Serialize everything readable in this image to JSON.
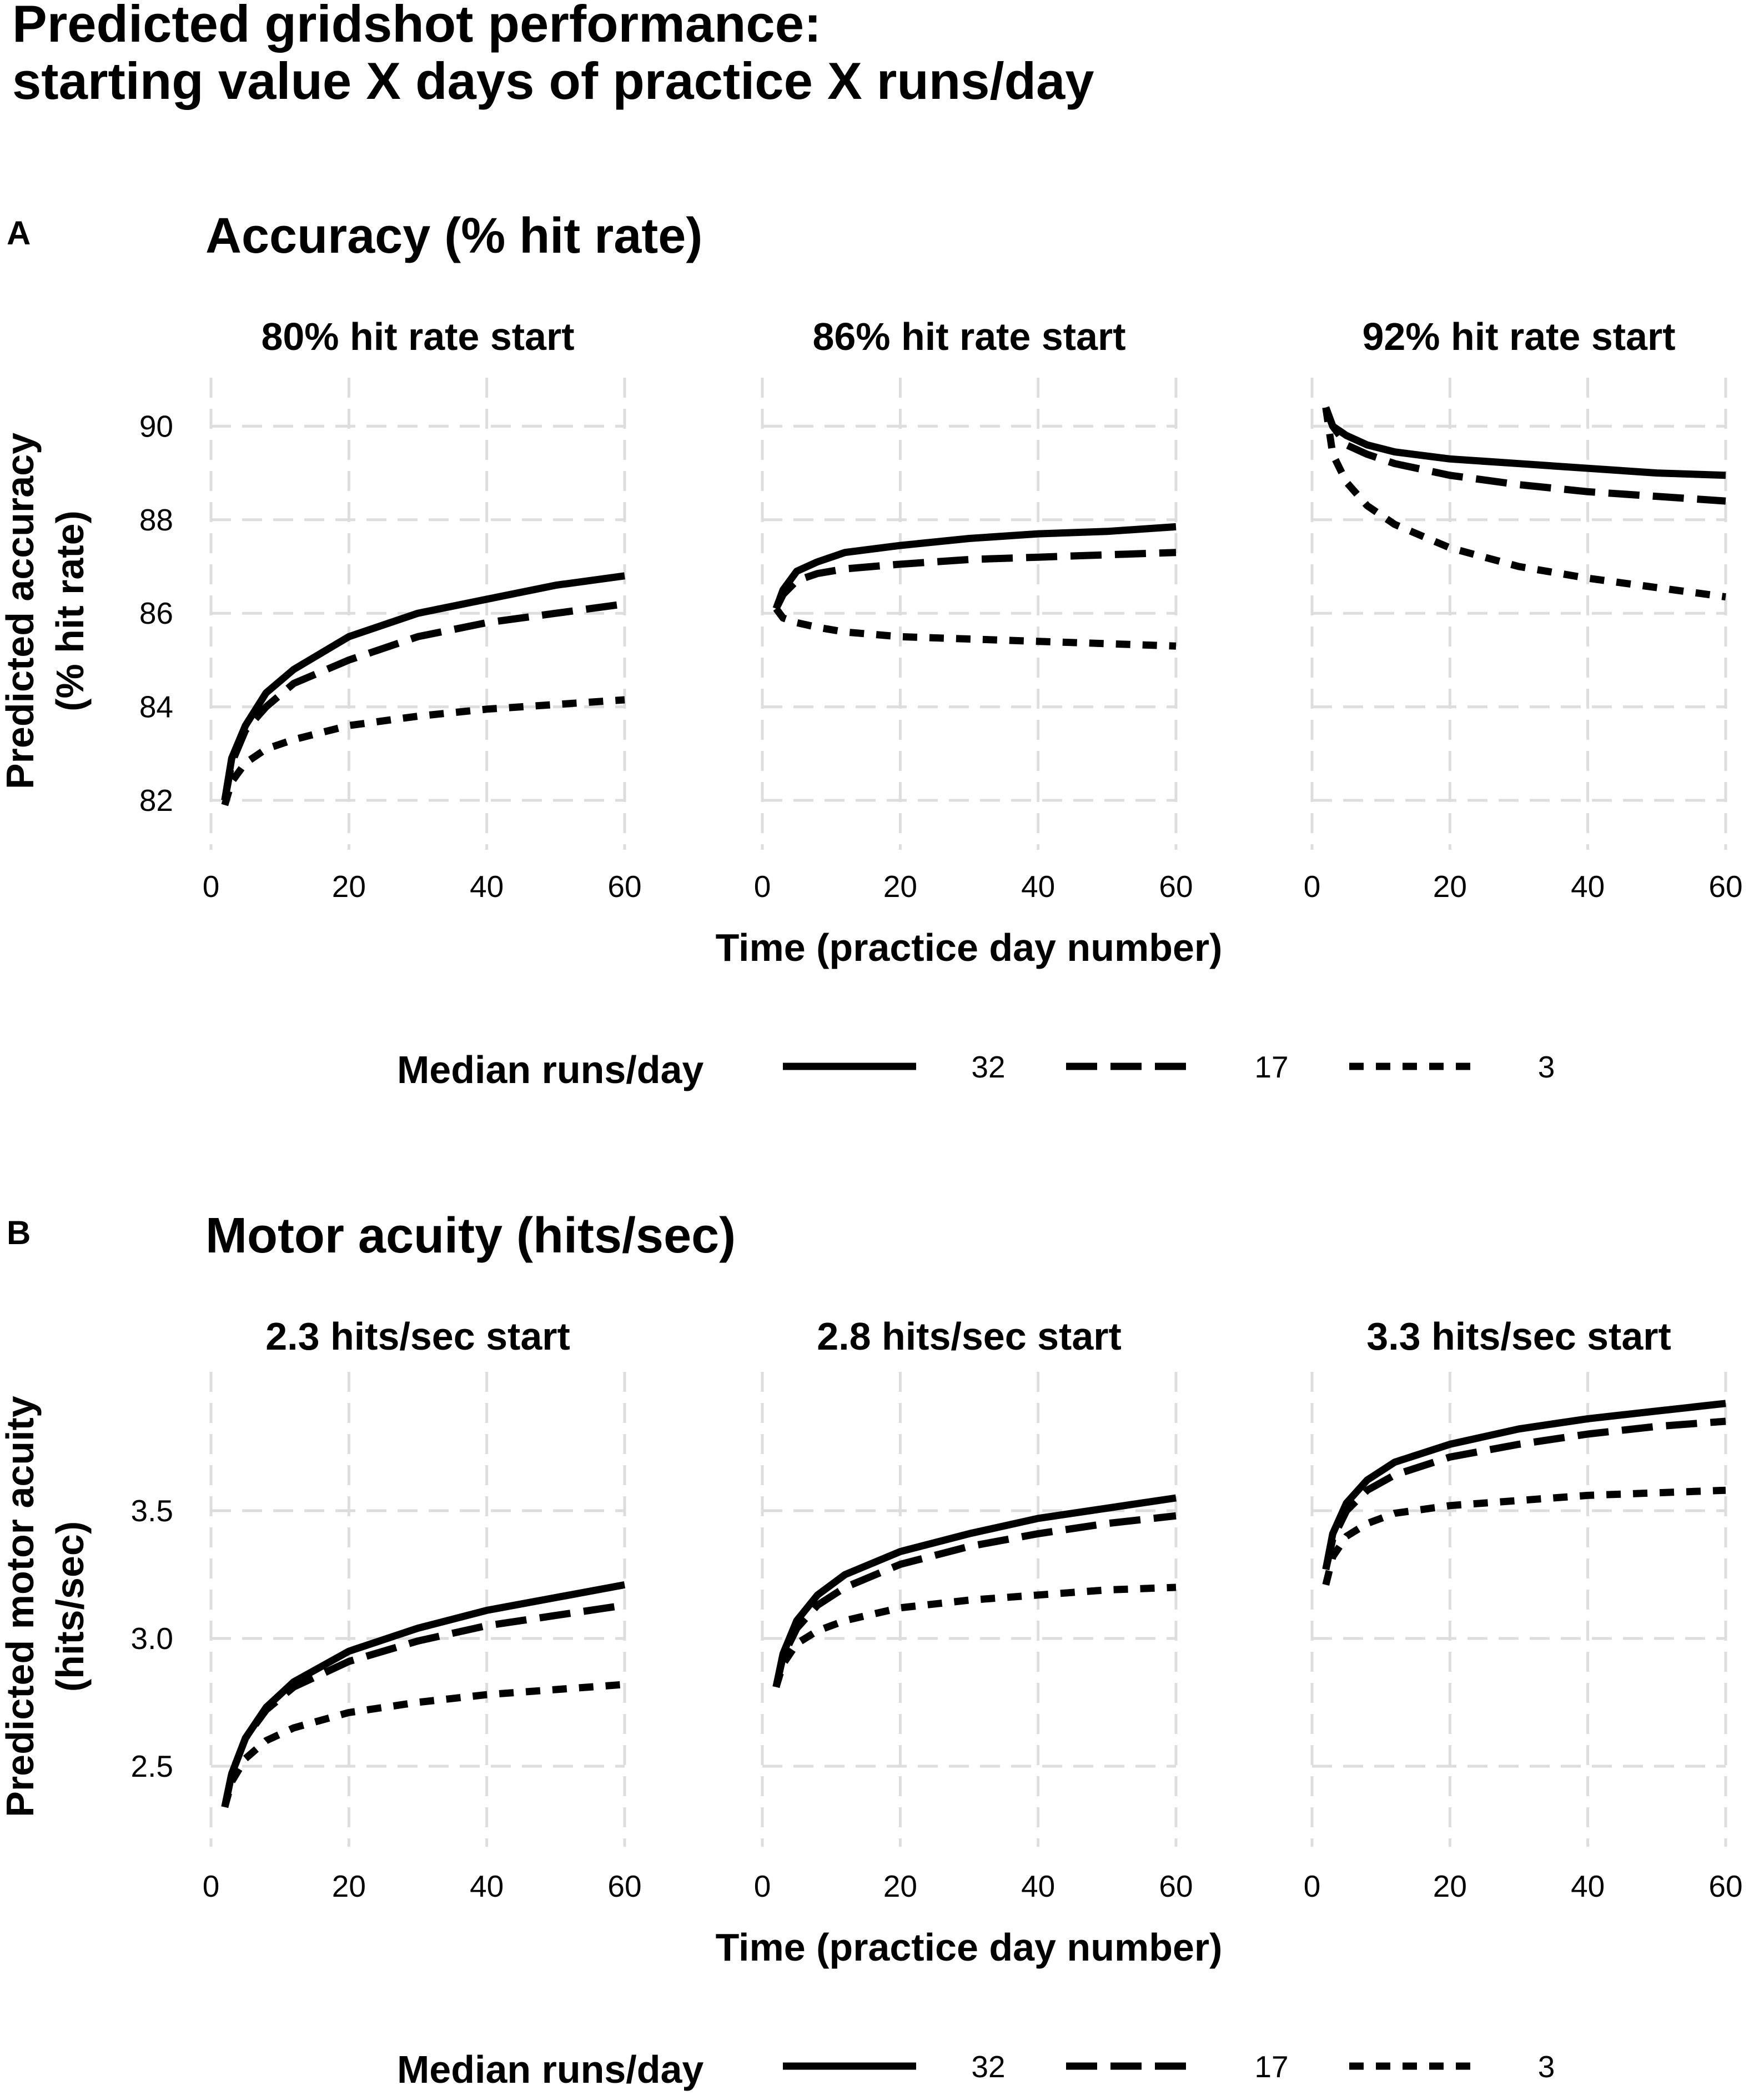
{
  "title_lines": [
    "Predicted gridshot performance:",
    "starting value X days of practice X runs/day"
  ],
  "legend": {
    "title": "Median runs/day",
    "entries": [
      {
        "label": "32",
        "style": "solid"
      },
      {
        "label": "17",
        "style": "dashed"
      },
      {
        "label": "3",
        "style": "dotted"
      }
    ]
  },
  "chart_data": [
    {
      "panel": "A",
      "type": "line",
      "title": "Accuracy (% hit rate)",
      "xlabel": "Time (practice day number)",
      "ylabel_lines": [
        "Predicted accuracy",
        "(% hit rate)"
      ],
      "xlim": [
        0,
        60
      ],
      "ylim": [
        81.3,
        90.8
      ],
      "xticks": [
        0,
        20,
        40,
        60
      ],
      "yticks": [
        82,
        84,
        86,
        88,
        90
      ],
      "ytick_labels": [
        "82",
        "84",
        "86",
        "88",
        "90"
      ],
      "facets": [
        {
          "title": "80% hit rate start",
          "x": [
            2,
            3,
            5,
            8,
            12,
            20,
            30,
            40,
            50,
            60
          ],
          "series": [
            {
              "name": "32",
              "values": [
                82.0,
                82.9,
                83.6,
                84.3,
                84.8,
                85.5,
                86.0,
                86.3,
                86.6,
                86.8
              ]
            },
            {
              "name": "17",
              "values": [
                82.0,
                82.8,
                83.5,
                84.0,
                84.5,
                85.0,
                85.5,
                85.8,
                86.0,
                86.2
              ]
            },
            {
              "name": "3",
              "values": [
                81.9,
                82.4,
                82.8,
                83.1,
                83.3,
                83.6,
                83.8,
                83.95,
                84.05,
                84.15
              ]
            }
          ]
        },
        {
          "title": "86% hit rate start",
          "x": [
            2,
            3,
            5,
            8,
            12,
            20,
            30,
            40,
            50,
            60
          ],
          "series": [
            {
              "name": "32",
              "values": [
                86.1,
                86.5,
                86.9,
                87.1,
                87.3,
                87.45,
                87.6,
                87.7,
                87.75,
                87.85
              ]
            },
            {
              "name": "17",
              "values": [
                86.1,
                86.4,
                86.7,
                86.85,
                86.95,
                87.05,
                87.15,
                87.2,
                87.25,
                87.3
              ]
            },
            {
              "name": "3",
              "values": [
                86.1,
                85.9,
                85.8,
                85.7,
                85.6,
                85.5,
                85.45,
                85.4,
                85.35,
                85.3
              ]
            }
          ]
        },
        {
          "title": "92% hit rate start",
          "x": [
            2,
            3,
            5,
            8,
            12,
            20,
            30,
            40,
            50,
            60
          ],
          "series": [
            {
              "name": "32",
              "values": [
                90.4,
                90.0,
                89.8,
                89.6,
                89.45,
                89.3,
                89.2,
                89.1,
                89.0,
                88.95
              ]
            },
            {
              "name": "17",
              "values": [
                90.4,
                90.0,
                89.6,
                89.4,
                89.2,
                88.95,
                88.75,
                88.6,
                88.5,
                88.4
              ]
            },
            {
              "name": "3",
              "values": [
                90.4,
                89.4,
                88.8,
                88.3,
                87.9,
                87.4,
                87.0,
                86.75,
                86.55,
                86.35
              ]
            }
          ]
        }
      ]
    },
    {
      "panel": "B",
      "type": "line",
      "title": "Motor acuity (hits/sec)",
      "xlabel": "Time (practice day number)",
      "ylabel_lines": [
        "Predicted motor acuity",
        "(hits/sec)"
      ],
      "xlim": [
        0,
        60
      ],
      "ylim": [
        2.25,
        4.0
      ],
      "xticks": [
        0,
        20,
        40,
        60
      ],
      "yticks": [
        2.5,
        3.0,
        3.5
      ],
      "ytick_labels": [
        "2.5",
        "3.0",
        "3.5"
      ],
      "facets": [
        {
          "title": "2.3 hits/sec start",
          "x": [
            2,
            3,
            5,
            8,
            12,
            20,
            30,
            40,
            50,
            60
          ],
          "series": [
            {
              "name": "32",
              "values": [
                2.34,
                2.47,
                2.61,
                2.73,
                2.83,
                2.95,
                3.04,
                3.11,
                3.16,
                3.21
              ]
            },
            {
              "name": "17",
              "values": [
                2.34,
                2.47,
                2.61,
                2.72,
                2.81,
                2.91,
                2.99,
                3.05,
                3.09,
                3.13
              ]
            },
            {
              "name": "3",
              "values": [
                2.34,
                2.44,
                2.53,
                2.6,
                2.65,
                2.71,
                2.75,
                2.78,
                2.8,
                2.82
              ]
            }
          ]
        },
        {
          "title": "2.8 hits/sec start",
          "x": [
            2,
            3,
            5,
            8,
            12,
            20,
            30,
            40,
            50,
            60
          ],
          "series": [
            {
              "name": "32",
              "values": [
                2.81,
                2.94,
                3.07,
                3.17,
                3.25,
                3.34,
                3.41,
                3.47,
                3.51,
                3.55
              ]
            },
            {
              "name": "17",
              "values": [
                2.81,
                2.93,
                3.04,
                3.13,
                3.2,
                3.29,
                3.36,
                3.41,
                3.45,
                3.48
              ]
            },
            {
              "name": "3",
              "values": [
                2.81,
                2.9,
                2.98,
                3.03,
                3.07,
                3.12,
                3.15,
                3.17,
                3.19,
                3.2
              ]
            }
          ]
        },
        {
          "title": "3.3 hits/sec start",
          "x": [
            2,
            3,
            5,
            8,
            12,
            20,
            30,
            40,
            50,
            60
          ],
          "series": [
            {
              "name": "32",
              "values": [
                3.27,
                3.41,
                3.53,
                3.62,
                3.69,
                3.76,
                3.82,
                3.86,
                3.89,
                3.92
              ]
            },
            {
              "name": "17",
              "values": [
                3.27,
                3.39,
                3.5,
                3.58,
                3.64,
                3.71,
                3.76,
                3.8,
                3.83,
                3.85
              ]
            },
            {
              "name": "3",
              "values": [
                3.21,
                3.32,
                3.4,
                3.45,
                3.49,
                3.52,
                3.54,
                3.56,
                3.57,
                3.58
              ]
            }
          ]
        }
      ]
    }
  ]
}
